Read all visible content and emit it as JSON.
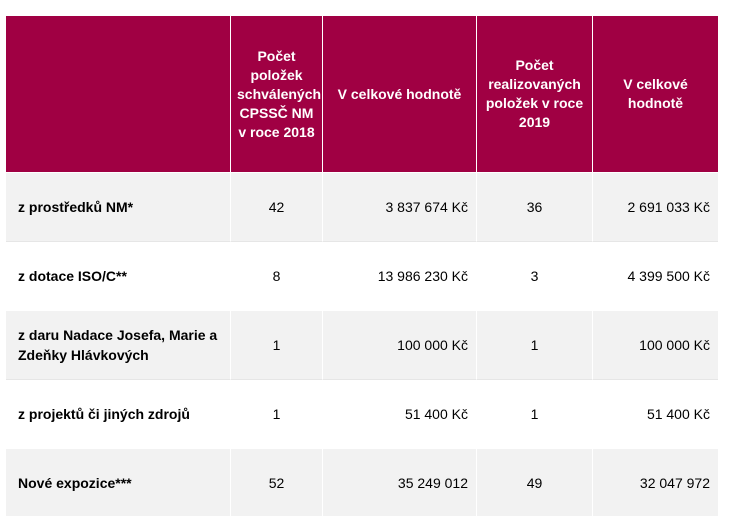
{
  "table": {
    "headers": [
      "",
      "Počet položek schválených CPSSČ NM v roce 2018",
      "V celkové hodnotě",
      "Počet realizovaných položek v roce 2019",
      "V celkové hodnotě"
    ],
    "rows": [
      {
        "label": "z prostředků NM*",
        "count_2018": "42",
        "value_2018": "3 837 674 Kč",
        "count_2019": "36",
        "value_2019": "2 691 033 Kč"
      },
      {
        "label": "z dotace ISO/C**",
        "count_2018": "8",
        "value_2018": "13 986 230 Kč",
        "count_2019": "3",
        "value_2019": "4 399 500 Kč"
      },
      {
        "label": "z daru Nadace Josefa, Marie a Zdeňky Hlávkových",
        "count_2018": "1",
        "value_2018": "100 000 Kč",
        "count_2019": "1",
        "value_2019": "100 000 Kč"
      },
      {
        "label": "z projektů či jiných zdrojů",
        "count_2018": "1",
        "value_2018": "51 400 Kč",
        "count_2019": "1",
        "value_2019": "51 400 Kč"
      },
      {
        "label": "Nové expozice***",
        "count_2018": "52",
        "value_2018": "35 249 012",
        "count_2019": "49",
        "value_2019": "32 047 972"
      }
    ]
  },
  "colors": {
    "header_bg": "#a00043",
    "header_text": "#ffffff",
    "row_band": "#f2f2f2"
  }
}
